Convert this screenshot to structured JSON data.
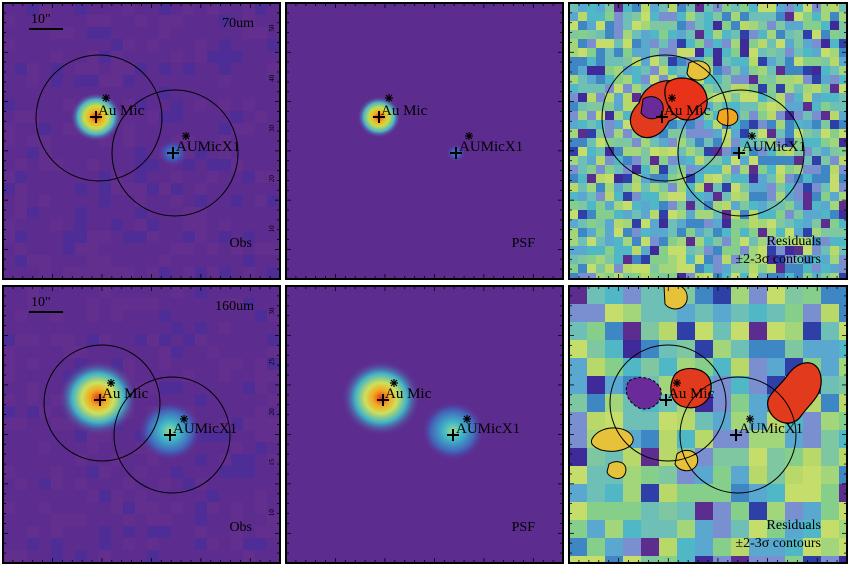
{
  "figure": {
    "panels": [
      {
        "id": "70-obs",
        "row": "70",
        "kind": "obs",
        "corner_label": "Obs",
        "band_label": "70um",
        "scalebar_label": "10\"",
        "show_ticks": true
      },
      {
        "id": "70-psf",
        "row": "70",
        "kind": "psf",
        "corner_label": "PSF"
      },
      {
        "id": "70-res",
        "row": "70",
        "kind": "residual",
        "corner_label_line1": "Residuals",
        "corner_label_line2": "±2-3σ contours"
      },
      {
        "id": "160-obs",
        "row": "160",
        "kind": "obs",
        "corner_label": "Obs",
        "band_label": "160um",
        "scalebar_label": "10\"",
        "show_ticks": true
      },
      {
        "id": "160-psf",
        "row": "160",
        "kind": "psf",
        "corner_label": "PSF"
      },
      {
        "id": "160-res",
        "row": "160",
        "kind": "residual",
        "corner_label_line1": "Residuals",
        "corner_label_line2": "±2-3σ contours"
      }
    ],
    "sources": [
      {
        "name": "Au Mic"
      },
      {
        "name": "AUMicX1"
      }
    ],
    "ticks_70": [
      "10",
      "20",
      "30",
      "40",
      "50"
    ],
    "ticks_160": [
      "10",
      "15",
      "20",
      "25",
      "30"
    ],
    "colors": {
      "background": "#5c2c8f",
      "map_low": "#3f2a9a",
      "map_mid": "#36b4c8",
      "map_high": "#e23a1c",
      "frame": "#000000"
    }
  }
}
